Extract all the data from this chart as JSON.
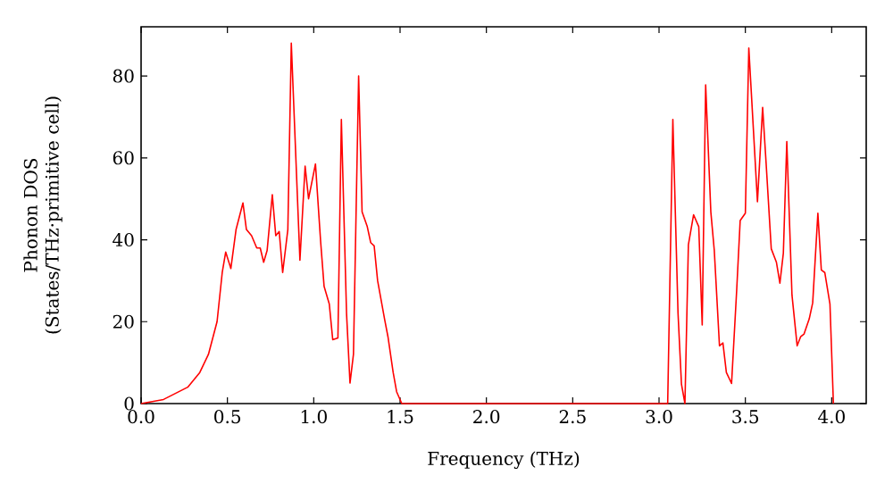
{
  "chart_data": {
    "type": "line",
    "xlabel": "Frequency (THz)",
    "ylabel": "Phonon DOS (States/THz·primitive cell)",
    "xlim": [
      0,
      4.2
    ],
    "ylim": [
      0,
      92
    ],
    "xticks": [
      {
        "value": 0,
        "label": "0.0"
      },
      {
        "value": 0.5,
        "label": "0.5"
      },
      {
        "value": 1,
        "label": "1.0"
      },
      {
        "value": 1.5,
        "label": "1.5"
      },
      {
        "value": 2,
        "label": "2.0"
      },
      {
        "value": 2.5,
        "label": "2.5"
      },
      {
        "value": 3,
        "label": "3.0"
      },
      {
        "value": 3.5,
        "label": "3.5"
      },
      {
        "value": 4,
        "label": "4.0"
      }
    ],
    "yticks": [
      0,
      20,
      40,
      60,
      80
    ],
    "grid": false,
    "marker": "none",
    "line_style": "solid",
    "series": [
      {
        "color": "#ff0000",
        "x": [
          0,
          0.13,
          0.27,
          0.34,
          0.39,
          0.44,
          0.47,
          0.49,
          0.52,
          0.55,
          0.59,
          0.61,
          0.64,
          0.67,
          0.69,
          0.71,
          0.73,
          0.76,
          0.78,
          0.8,
          0.82,
          0.85,
          0.87,
          0.92,
          0.95,
          0.97,
          1.01,
          1.04,
          1.06,
          1.09,
          1.11,
          1.14,
          1.16,
          1.19,
          1.21,
          1.23,
          1.26,
          1.28,
          1.31,
          1.33,
          1.35,
          1.37,
          1.41,
          1.43,
          1.46,
          1.48,
          1.51,
          3.05,
          3.08,
          3.11,
          3.13,
          3.15,
          3.17,
          3.2,
          3.23,
          3.25,
          3.27,
          3.3,
          3.32,
          3.35,
          3.37,
          3.39,
          3.42,
          3.45,
          3.47,
          3.5,
          3.52,
          3.57,
          3.6,
          3.62,
          3.65,
          3.68,
          3.7,
          3.72,
          3.74,
          3.77,
          3.8,
          3.82,
          3.84,
          3.87,
          3.89,
          3.92,
          3.94,
          3.96,
          3.99,
          4.01
        ],
        "values": [
          0,
          1,
          4,
          7.6,
          12,
          20,
          32,
          37,
          33,
          42.5,
          49,
          42.5,
          41,
          38,
          38,
          34.5,
          37.4,
          51,
          41,
          42,
          32,
          42.5,
          88,
          35,
          58,
          50,
          58.5,
          39.5,
          28.6,
          24.3,
          15.6,
          16,
          69.4,
          22,
          5,
          12,
          80,
          46.8,
          43.2,
          39.3,
          38.5,
          30,
          20.7,
          16.3,
          7.6,
          2.9,
          0,
          0,
          69.4,
          22,
          4.7,
          0,
          38.8,
          46.1,
          43.2,
          19.2,
          77.8,
          46.8,
          37.4,
          14.1,
          14.8,
          7.6,
          4.9,
          27.9,
          44.7,
          46.5,
          86.8,
          49.3,
          72.3,
          58.8,
          37.8,
          34.5,
          29.4,
          36.7,
          64,
          26.5,
          14.1,
          16.3,
          17,
          20.7,
          24.6,
          46.5,
          32.6,
          32,
          24.3,
          0
        ]
      }
    ]
  }
}
